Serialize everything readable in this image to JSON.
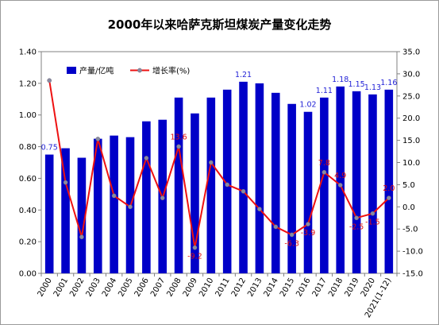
{
  "chart_data": {
    "type": "bar",
    "title": "2000年以来哈萨克斯坦煤炭产量变化走势",
    "categories": [
      "2000",
      "2001",
      "2002",
      "2003",
      "2004",
      "2005",
      "2006",
      "2007",
      "2008",
      "2009",
      "2010",
      "2011",
      "2012",
      "2013",
      "2014",
      "2015",
      "2016",
      "2017",
      "2018",
      "2019",
      "2020",
      "2021(1-12)"
    ],
    "series": [
      {
        "name": "产量/亿吨",
        "kind": "bar",
        "axis": "left",
        "color": "#0000c8",
        "values": [
          0.75,
          0.79,
          0.73,
          0.85,
          0.87,
          0.86,
          0.96,
          0.97,
          1.11,
          1.01,
          1.11,
          1.16,
          1.21,
          1.2,
          1.14,
          1.07,
          1.02,
          1.11,
          1.18,
          1.15,
          1.13,
          1.16
        ],
        "labels": {
          "0": "0.75",
          "12": "1.21",
          "16": "1.02",
          "17": "1.11",
          "18": "1.18",
          "19": "1.15",
          "20": "1.13",
          "21": "1.16"
        }
      },
      {
        "name": "增长率(%)",
        "kind": "line",
        "axis": "right",
        "color": "#ee1111",
        "values": [
          28.5,
          5.5,
          -6.8,
          15.3,
          2.5,
          0.0,
          11.0,
          2.0,
          13.6,
          -9.2,
          10.0,
          5.0,
          3.5,
          -0.5,
          -4.5,
          -6.3,
          -3.9,
          7.8,
          4.9,
          -2.5,
          -1.5,
          2.0
        ],
        "labels": {
          "8": "13.6",
          "9": "-9.2",
          "15": "-6.3",
          "16": "-3.9",
          "17": "7.8",
          "18": "4.9",
          "19": "-2.5",
          "20": "-1.5",
          "21": "2.0"
        }
      }
    ],
    "y_left": {
      "min": 0,
      "max": 1.4,
      "step": 0.2,
      "decimals": 2
    },
    "y_right": {
      "min": -15,
      "max": 35,
      "step": 5,
      "decimals": 1
    },
    "xlabel": "",
    "ylabel": "",
    "grid": false,
    "legend": "top-left"
  }
}
